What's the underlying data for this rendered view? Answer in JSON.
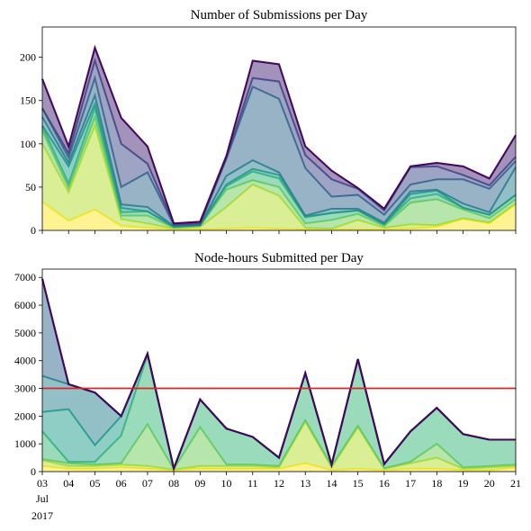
{
  "chart_data": [
    {
      "type": "area",
      "stacked": true,
      "title": "Number of Submissions per Day",
      "x": [
        "03",
        "04",
        "05",
        "06",
        "07",
        "08",
        "09",
        "10",
        "11",
        "12",
        "13",
        "14",
        "15",
        "16",
        "17",
        "18",
        "19",
        "20",
        "21"
      ],
      "ylim": [
        0,
        235
      ],
      "yticks": [
        0,
        50,
        100,
        150,
        200
      ],
      "grid": false,
      "colors": [
        "#fde725",
        "#b5de2b",
        "#6ece58",
        "#35b779",
        "#1f9e89",
        "#26828e",
        "#31688e",
        "#3e4989",
        "#482878",
        "#440154"
      ],
      "series": [
        {
          "values": [
            33,
            11,
            24,
            5,
            3,
            1,
            1,
            2,
            3,
            2,
            1,
            1,
            1,
            1,
            2,
            4,
            13,
            8,
            30
          ]
        },
        {
          "values": [
            67,
            33,
            97,
            8,
            5,
            1,
            3,
            25,
            50,
            38,
            2,
            1,
            11,
            2,
            5,
            2,
            1,
            1,
            1
          ]
        },
        {
          "values": [
            15,
            5,
            10,
            4,
            9,
            1,
            1,
            20,
            5,
            10,
            5,
            10,
            7,
            2,
            25,
            30,
            10,
            5,
            5
          ]
        },
        {
          "values": [
            5,
            5,
            10,
            4,
            5,
            1,
            1,
            4,
            10,
            10,
            7,
            8,
            4,
            2,
            5,
            6,
            2,
            4,
            5
          ]
        },
        {
          "values": [
            1,
            20,
            5,
            5,
            0,
            0,
            0,
            2,
            3,
            4,
            1,
            0,
            0,
            0,
            5,
            4,
            0,
            0,
            0
          ]
        },
        {
          "values": [
            10,
            4,
            10,
            4,
            5,
            1,
            0,
            10,
            10,
            3,
            1,
            5,
            2,
            2,
            3,
            1,
            5,
            3,
            32
          ]
        },
        {
          "values": [
            10,
            6,
            20,
            20,
            40,
            1,
            1,
            20,
            85,
            85,
            55,
            14,
            16,
            9,
            8,
            12,
            28,
            27,
            7
          ]
        },
        {
          "values": [
            0,
            5,
            20,
            50,
            10,
            1,
            1,
            0,
            10,
            20,
            15,
            20,
            7,
            5,
            20,
            15,
            5,
            4,
            5
          ]
        },
        {
          "values": [
            34,
            8,
            15,
            30,
            20,
            1,
            2,
            3,
            20,
            20,
            10,
            10,
            1,
            2,
            1,
            4,
            10,
            8,
            25
          ]
        },
        {
          "values": [
            0,
            0,
            0,
            0,
            0,
            0,
            0,
            0,
            0,
            0,
            0,
            0,
            0,
            0,
            0,
            0,
            0,
            0,
            0
          ]
        }
      ]
    },
    {
      "type": "area",
      "stacked": true,
      "title": "Node-hours Submitted per Day",
      "x": [
        "03",
        "04",
        "05",
        "06",
        "07",
        "08",
        "09",
        "10",
        "11",
        "12",
        "13",
        "14",
        "15",
        "16",
        "17",
        "18",
        "19",
        "20",
        "21"
      ],
      "ylim": [
        0,
        7300
      ],
      "yticks": [
        0,
        1000,
        2000,
        3000,
        4000,
        5000,
        6000,
        7000
      ],
      "grid": false,
      "reference_line": {
        "y": 3000,
        "color": "#d62728"
      },
      "xtick_sublabels": {
        "month": "Jul",
        "year": "2017"
      },
      "colors": [
        "#fde725",
        "#b5de2b",
        "#6ece58",
        "#35b779",
        "#1f9e89",
        "#26828e",
        "#31688e",
        "#3e4989",
        "#482878",
        "#440154"
      ],
      "series": [
        {
          "values": [
            200,
            100,
            100,
            150,
            100,
            50,
            100,
            100,
            100,
            100,
            300,
            50,
            100,
            50,
            100,
            100,
            50,
            50,
            150
          ]
        },
        {
          "values": [
            200,
            100,
            100,
            100,
            100,
            20,
            100,
            100,
            100,
            50,
            1500,
            100,
            1500,
            50,
            200,
            400,
            50,
            100,
            50
          ]
        },
        {
          "values": [
            50,
            100,
            50,
            50,
            1500,
            20,
            1400,
            50,
            50,
            50,
            50,
            50,
            50,
            20,
            50,
            500,
            50,
            50,
            50
          ]
        },
        {
          "values": [
            1000,
            50,
            100,
            1000,
            2500,
            20,
            1000,
            1300,
            1000,
            300,
            1700,
            50,
            2400,
            150,
            1100,
            1300,
            1200,
            950,
            900
          ]
        },
        {
          "values": [
            700,
            1900,
            600,
            700,
            50,
            0,
            0,
            0,
            0,
            0,
            0,
            0,
            0,
            0,
            0,
            0,
            0,
            0,
            0
          ]
        },
        {
          "values": [
            1300,
            900,
            1900,
            0,
            0,
            0,
            0,
            0,
            0,
            0,
            0,
            0,
            0,
            0,
            0,
            0,
            0,
            0,
            0
          ]
        },
        {
          "values": [
            3500,
            0,
            0,
            0,
            0,
            0,
            0,
            0,
            0,
            0,
            0,
            0,
            0,
            0,
            0,
            0,
            0,
            0,
            0
          ]
        },
        {
          "values": [
            0,
            0,
            0,
            0,
            0,
            0,
            0,
            0,
            0,
            0,
            0,
            0,
            0,
            0,
            0,
            0,
            0,
            0,
            0
          ]
        },
        {
          "values": [
            0,
            0,
            0,
            0,
            0,
            0,
            0,
            0,
            0,
            0,
            0,
            0,
            0,
            0,
            0,
            0,
            0,
            0,
            0
          ]
        },
        {
          "values": [
            0,
            0,
            0,
            0,
            0,
            0,
            0,
            0,
            0,
            0,
            0,
            0,
            0,
            0,
            0,
            0,
            0,
            0,
            0
          ]
        }
      ]
    }
  ]
}
